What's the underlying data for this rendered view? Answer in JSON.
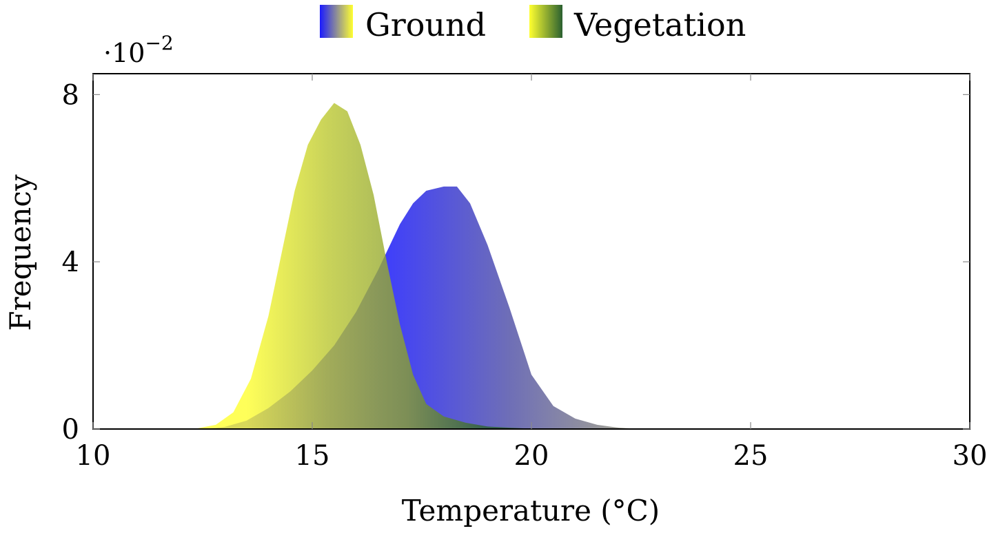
{
  "chart_data": {
    "type": "area",
    "xlabel": "Temperature (°C)",
    "ylabel": "Frequency",
    "y_scale_note": {
      "base": "·10",
      "exponent": "−2"
    },
    "xlim": [
      10,
      30
    ],
    "ylim": [
      0,
      8.5
    ],
    "x_ticks": [
      10,
      15,
      20,
      25,
      30
    ],
    "x_tick_labels": [
      "10",
      "15",
      "20",
      "25",
      "30"
    ],
    "y_ticks": [
      0,
      4,
      8
    ],
    "y_tick_labels": [
      "0",
      "4",
      "8"
    ],
    "grid": false,
    "legend_position": "top-center",
    "series": [
      {
        "name": "Ground",
        "gradient": [
          "#1a1aff",
          "#5555aa",
          "#9a9a7a"
        ],
        "x": [
          12.5,
          13.0,
          13.5,
          14.0,
          14.5,
          15.0,
          15.5,
          16.0,
          16.5,
          17.0,
          17.3,
          17.6,
          18.0,
          18.3,
          18.6,
          19.0,
          19.5,
          20.0,
          20.5,
          21.0,
          21.5,
          22.0,
          22.5
        ],
        "values": [
          0.0,
          0.05,
          0.2,
          0.5,
          0.9,
          1.4,
          2.0,
          2.8,
          3.8,
          4.9,
          5.4,
          5.7,
          5.8,
          5.8,
          5.4,
          4.4,
          2.9,
          1.3,
          0.55,
          0.25,
          0.1,
          0.03,
          0.0
        ]
      },
      {
        "name": "Vegetation",
        "gradient": [
          "#ffff30",
          "#bcc830",
          "#8aa030",
          "#2a6030"
        ],
        "x": [
          12.3,
          12.8,
          13.2,
          13.6,
          14.0,
          14.3,
          14.6,
          14.9,
          15.2,
          15.5,
          15.8,
          16.1,
          16.4,
          16.7,
          17.0,
          17.3,
          17.6,
          18.0,
          18.5,
          19.0,
          19.5,
          20.0,
          21.0
        ],
        "values": [
          0.0,
          0.1,
          0.4,
          1.2,
          2.7,
          4.2,
          5.7,
          6.8,
          7.4,
          7.8,
          7.6,
          6.8,
          5.6,
          4.0,
          2.5,
          1.3,
          0.6,
          0.3,
          0.15,
          0.06,
          0.03,
          0.01,
          0.0
        ]
      }
    ]
  }
}
